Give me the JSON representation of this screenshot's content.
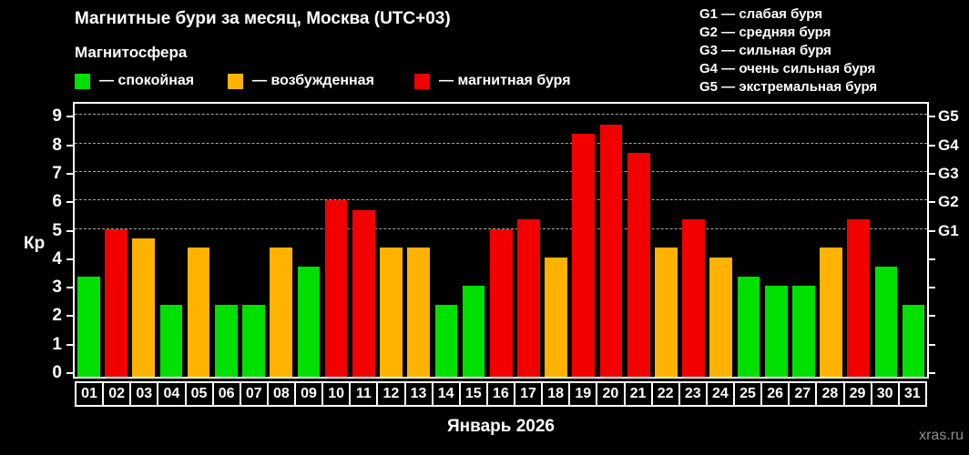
{
  "header": {
    "title": "Магнитные бури за месяц, Москва (UTC+03)",
    "subtitle": "Магнитосфера"
  },
  "legend": {
    "items": [
      {
        "state": "quiet",
        "label": "— спокойная",
        "color": "#00e000"
      },
      {
        "state": "unsettled",
        "label": "— возбужденная",
        "color": "#ffb300"
      },
      {
        "state": "storm",
        "label": "— магнитная буря",
        "color": "#f20000"
      }
    ]
  },
  "storm_scale": {
    "items": [
      "G1 — слабая буря",
      "G2 — средняя буря",
      "G3 — сильная буря",
      "G4 — очень сильная буря",
      "G5 — экстремальная буря"
    ]
  },
  "watermark": "xras.ru",
  "chart_data": {
    "type": "bar",
    "title": "Магнитные бури за месяц, Москва (UTC+03)",
    "xlabel": "Январь 2026",
    "ylabel": "Кр",
    "ylim": [
      0,
      9.5
    ],
    "yticks": [
      0,
      1,
      2,
      3,
      4,
      5,
      6,
      7,
      8,
      9
    ],
    "gridlines_at": [
      5,
      6,
      7,
      8,
      9
    ],
    "grid_style": "dashed horizontal lines at G-storm levels only",
    "legend_position": "top-left",
    "right_axis": {
      "labels": [
        "G1",
        "G2",
        "G3",
        "G4",
        "G5"
      ],
      "positions": [
        5,
        6,
        7,
        8,
        9
      ]
    },
    "categories": [
      "01",
      "02",
      "03",
      "04",
      "05",
      "06",
      "07",
      "08",
      "09",
      "10",
      "11",
      "12",
      "13",
      "14",
      "15",
      "16",
      "17",
      "18",
      "19",
      "20",
      "21",
      "22",
      "23",
      "24",
      "25",
      "26",
      "27",
      "28",
      "29",
      "30",
      "31"
    ],
    "values": [
      3.33,
      5.0,
      4.67,
      2.33,
      4.33,
      2.33,
      2.33,
      4.33,
      3.67,
      6.0,
      5.67,
      4.33,
      4.33,
      2.33,
      3.0,
      5.0,
      5.33,
      4.0,
      8.33,
      8.67,
      7.67,
      4.33,
      5.33,
      4.0,
      3.33,
      3.0,
      3.0,
      4.33,
      5.33,
      3.67,
      2.33
    ],
    "states": [
      "quiet",
      "storm",
      "unsettled",
      "quiet",
      "unsettled",
      "quiet",
      "quiet",
      "unsettled",
      "quiet",
      "storm",
      "storm",
      "unsettled",
      "unsettled",
      "quiet",
      "quiet",
      "storm",
      "storm",
      "unsettled",
      "storm",
      "storm",
      "storm",
      "unsettled",
      "storm",
      "unsettled",
      "quiet",
      "quiet",
      "quiet",
      "unsettled",
      "storm",
      "quiet",
      "quiet"
    ],
    "state_colors": {
      "quiet": "#00e000",
      "unsettled": "#ffb300",
      "storm": "#f20000"
    }
  }
}
